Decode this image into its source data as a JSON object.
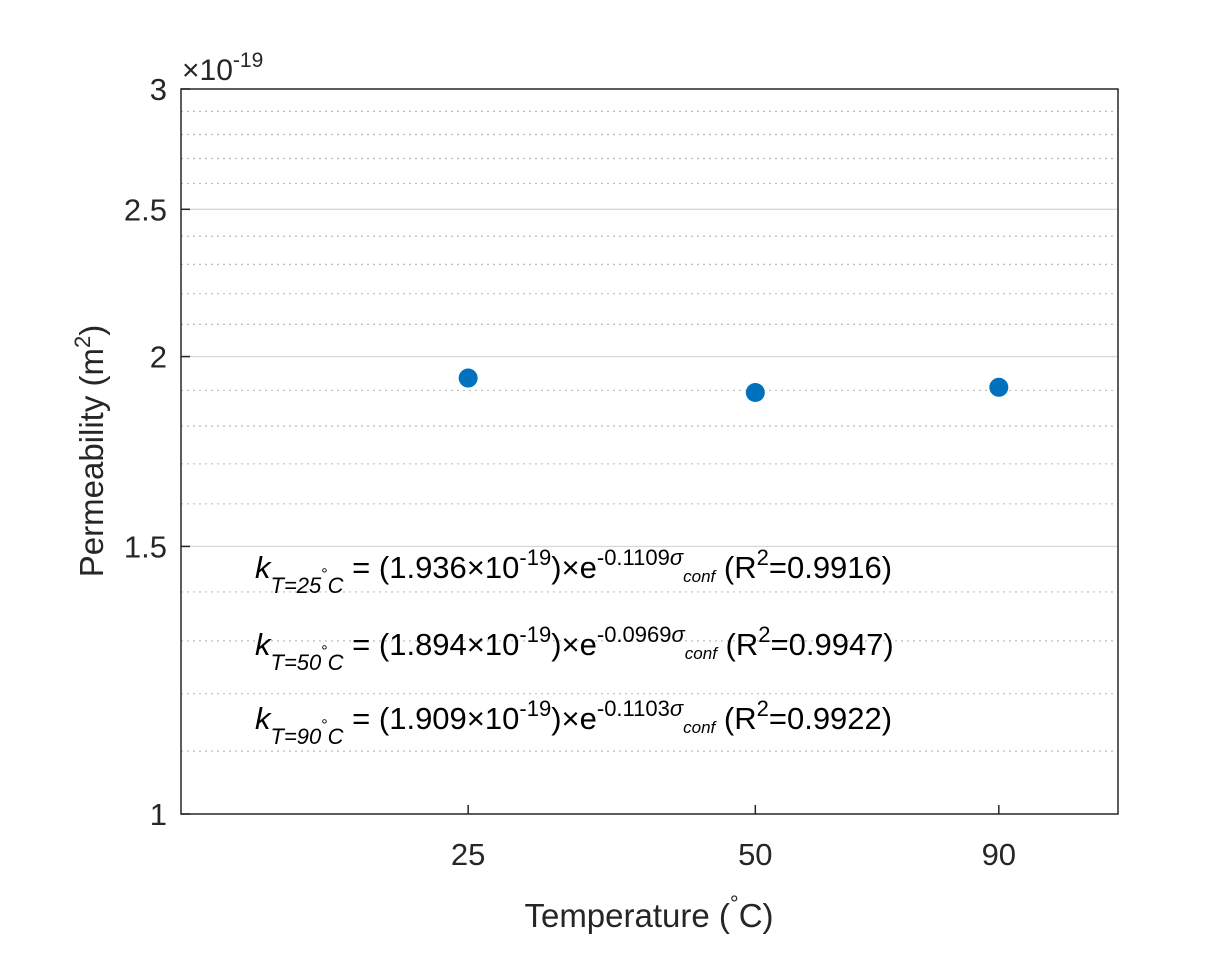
{
  "chart_data": {
    "type": "scatter",
    "x_scale": "log",
    "y_scale": "log",
    "y_multiplier_label": "×10",
    "y_multiplier_exponent": "-19",
    "xlabel_main": "Temperature (",
    "xlabel_degree": "°",
    "xlabel_end": "C)",
    "ylabel_main": "Permeability (m",
    "ylabel_sup": "2",
    "ylabel_end": ")",
    "x_ticks": [
      {
        "value": 25,
        "label": "25"
      },
      {
        "value": 50,
        "label": "50"
      },
      {
        "value": 90,
        "label": "90"
      }
    ],
    "y_ticks": [
      {
        "value": 1.0,
        "label": "1"
      },
      {
        "value": 1.5,
        "label": "1.5"
      },
      {
        "value": 2.0,
        "label": "2"
      },
      {
        "value": 2.5,
        "label": "2.5"
      },
      {
        "value": 3.0,
        "label": "3"
      }
    ],
    "y_minor_gridlines": [
      1.1,
      1.2,
      1.3,
      1.4,
      1.6,
      1.7,
      1.8,
      1.9,
      2.1,
      2.2,
      2.3,
      2.4,
      2.6,
      2.7,
      2.8,
      2.9
    ],
    "xlim": [
      12.5,
      120
    ],
    "ylim": [
      1.0,
      3.0
    ],
    "grid": true,
    "color": "#0072bd",
    "series": [
      {
        "name": "Permeability",
        "x": [
          25,
          50,
          90
        ],
        "y": [
          1.936,
          1.894,
          1.909
        ]
      }
    ],
    "equations": [
      {
        "k": "k",
        "sub": "T=25",
        "deg": "°",
        "subC": "C",
        "eq": " = (1.936",
        "times1": "×",
        "ten": "10",
        "exp": "-19",
        "close": ")",
        "times2": "×",
        "e": "e",
        "coef": "-0.1109",
        "sigma": "σ",
        "conf": "conf",
        "r2a": " (R",
        "r2sup": "2",
        "r2b": "=0.9916)"
      },
      {
        "k": "k",
        "sub": "T=50",
        "deg": "°",
        "subC": "C",
        "eq": " = (1.894",
        "times1": "×",
        "ten": "10",
        "exp": "-19",
        "close": ")",
        "times2": "×",
        "e": "e",
        "coef": "-0.0969",
        "sigma": "σ",
        "conf": "conf",
        "r2a": " (R",
        "r2sup": "2",
        "r2b": "=0.9947)"
      },
      {
        "k": "k",
        "sub": "T=90",
        "deg": "°",
        "subC": "C",
        "eq": " = (1.909",
        "times1": "×",
        "ten": "10",
        "exp": "-19",
        "close": ")",
        "times2": "×",
        "e": "e",
        "coef": "-0.1103",
        "sigma": "σ",
        "conf": "conf",
        "r2a": " (R",
        "r2sup": "2",
        "r2b": "=0.9922)"
      }
    ]
  }
}
